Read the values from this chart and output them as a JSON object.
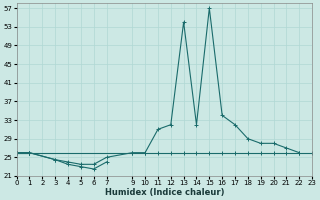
{
  "xlabel": "Humidex (Indice chaleur)",
  "ylabel": "",
  "background_color": "#cce8e4",
  "grid_color": "#b0d8d4",
  "line_color": "#1a6b6b",
  "xlim": [
    0,
    23
  ],
  "ylim": [
    21,
    58
  ],
  "yticks": [
    21,
    25,
    29,
    33,
    37,
    41,
    45,
    49,
    53,
    57
  ],
  "xtick_positions": [
    0,
    1,
    2,
    3,
    4,
    5,
    6,
    7,
    9,
    10,
    11,
    12,
    13,
    14,
    15,
    16,
    17,
    18,
    19,
    20,
    21,
    22,
    23
  ],
  "xtick_labels": [
    "0",
    "1",
    "2",
    "3",
    "4",
    "5",
    "6",
    "7",
    "9",
    "10",
    "11",
    "12",
    "13",
    "14",
    "15",
    "16",
    "17",
    "18",
    "19",
    "20",
    "21",
    "22",
    "23"
  ],
  "series": [
    {
      "x": [
        0,
        1
      ],
      "y": [
        26,
        26
      ]
    },
    {
      "x": [
        0,
        1,
        3,
        4,
        5,
        6,
        7
      ],
      "y": [
        26,
        26,
        24.5,
        23.5,
        23,
        22.5,
        24
      ]
    },
    {
      "x": [
        0,
        1,
        3,
        4,
        5,
        6,
        7,
        9,
        10,
        11,
        12,
        13,
        14,
        15,
        16,
        17,
        18,
        19,
        20,
        21,
        22
      ],
      "y": [
        26,
        26,
        24.5,
        24,
        23.5,
        23.5,
        25,
        26,
        26,
        31,
        32,
        54,
        32,
        57,
        34,
        32,
        29,
        28,
        28,
        27,
        26
      ]
    },
    {
      "x": [
        0,
        1,
        9,
        10,
        11,
        12,
        13,
        14,
        15,
        16,
        17,
        18,
        19,
        20,
        21,
        22,
        23
      ],
      "y": [
        26,
        26,
        26,
        26,
        26,
        26,
        26,
        26,
        26,
        26,
        26,
        26,
        26,
        26,
        26,
        26,
        26
      ]
    }
  ]
}
